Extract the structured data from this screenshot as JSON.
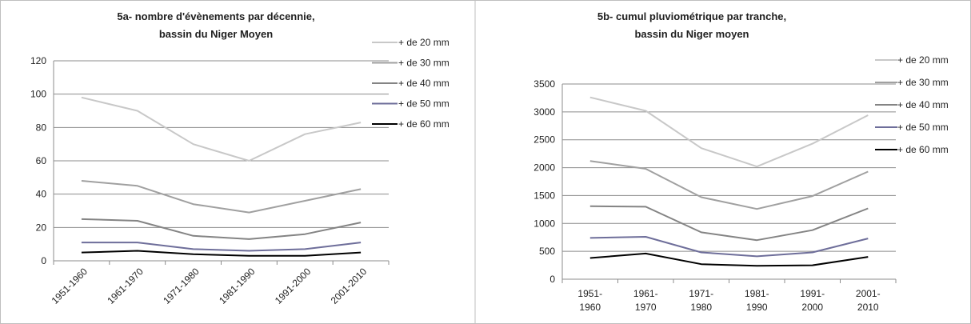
{
  "chart_data": [
    {
      "type": "line",
      "title_lines": [
        "5a- nombre d'évènements par décennie,",
        "bassin du Niger Moyen"
      ],
      "categories": [
        "1951-1960",
        "1961-1970",
        "1971-1980",
        "1981-1990",
        "1991-2000",
        "2001-2010"
      ],
      "ylim": [
        0,
        120
      ],
      "yticks": [
        0,
        20,
        40,
        60,
        80,
        100,
        120
      ],
      "grid": true,
      "legend_position": "right",
      "series": [
        {
          "name": "+ de 20 mm",
          "color": "#c8c8c8",
          "values": [
            98,
            90,
            70,
            60,
            76,
            83
          ]
        },
        {
          "name": "+ de 30 mm",
          "color": "#a0a0a0",
          "values": [
            48,
            45,
            34,
            29,
            36,
            43
          ]
        },
        {
          "name": "+ de 40 mm",
          "color": "#848484",
          "values": [
            25,
            24,
            15,
            13,
            16,
            23
          ]
        },
        {
          "name": "+ de 50 mm",
          "color": "#6e6e9a",
          "values": [
            11,
            11,
            7,
            6,
            7,
            11
          ]
        },
        {
          "name": "+ de 60 mm",
          "color": "#000000",
          "values": [
            5,
            6,
            4,
            3,
            3,
            5
          ]
        }
      ]
    },
    {
      "type": "line",
      "title_lines": [
        "5b- cumul pluviométrique par tranche,",
        "bassin du Niger moyen"
      ],
      "categories": [
        [
          "1951-",
          "1960"
        ],
        [
          "1961-",
          "1970"
        ],
        [
          "1971-",
          "1980"
        ],
        [
          "1981-",
          "1990"
        ],
        [
          "1991-",
          "2000"
        ],
        [
          "2001-",
          "2010"
        ]
      ],
      "ylim": [
        0,
        3500
      ],
      "yticks": [
        0,
        500,
        1000,
        1500,
        2000,
        2500,
        3000,
        3500
      ],
      "grid": true,
      "legend_position": "right",
      "series": [
        {
          "name": "+ de 20 mm",
          "color": "#c8c8c8",
          "values": [
            3260,
            3020,
            2350,
            2020,
            2430,
            2940
          ]
        },
        {
          "name": "+ de 30 mm",
          "color": "#a0a0a0",
          "values": [
            2120,
            1980,
            1470,
            1260,
            1490,
            1930
          ]
        },
        {
          "name": "+ de 40 mm",
          "color": "#848484",
          "values": [
            1310,
            1300,
            840,
            700,
            880,
            1270
          ]
        },
        {
          "name": "+ de 50 mm",
          "color": "#6e6e9a",
          "values": [
            740,
            760,
            480,
            410,
            480,
            730
          ]
        },
        {
          "name": "+ de 60 mm",
          "color": "#000000",
          "values": [
            380,
            460,
            270,
            240,
            250,
            400
          ]
        }
      ]
    }
  ]
}
